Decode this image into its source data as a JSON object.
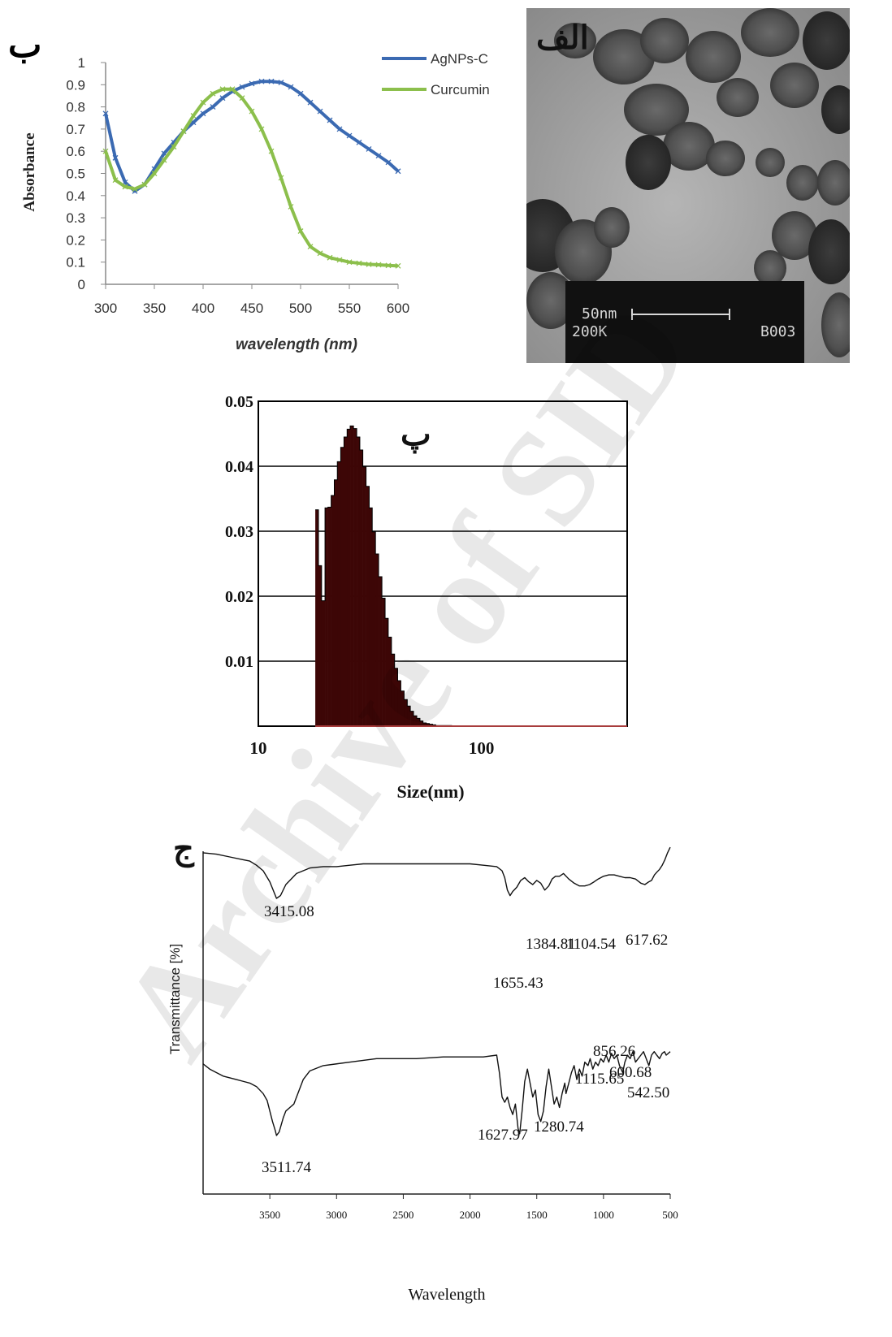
{
  "panels": {
    "uv_vis": {
      "letter": "ب"
    },
    "tem": {
      "letter": "الف",
      "scale_label": "50nm",
      "magnification": "200K",
      "code": "B003"
    },
    "dls": {
      "letter": "پ"
    },
    "ftir": {
      "letter": "ج"
    }
  },
  "watermark": "Archive of SID",
  "colors": {
    "agnps": "#3b6ab2",
    "curcumin": "#8cbf4c",
    "dls_fill": "#3d0606",
    "tem_bg": "#8a8a8a"
  },
  "chart_data": [
    {
      "id": "uv_vis",
      "type": "line",
      "title": "",
      "xlabel": "wavelength (nm)",
      "ylabel": "Absorbance",
      "xlim": [
        300,
        600
      ],
      "ylim": [
        0,
        1
      ],
      "xticks": [
        "300",
        "350",
        "400",
        "450",
        "500",
        "550",
        "600"
      ],
      "yticks": [
        "0",
        "0.1",
        "0.2",
        "0.3",
        "0.4",
        "0.5",
        "0.6",
        "0.7",
        "0.8",
        "0.9",
        "1"
      ],
      "grid": false,
      "legend": "top-right",
      "x": [
        300,
        310,
        320,
        330,
        340,
        350,
        360,
        370,
        380,
        390,
        400,
        410,
        420,
        430,
        440,
        450,
        460,
        470,
        480,
        490,
        500,
        510,
        520,
        530,
        540,
        550,
        560,
        570,
        580,
        590,
        600
      ],
      "series": [
        {
          "name": "AgNPs-C",
          "color": "#3b6ab2",
          "values": [
            0.77,
            0.57,
            0.46,
            0.42,
            0.45,
            0.52,
            0.59,
            0.64,
            0.69,
            0.73,
            0.77,
            0.8,
            0.84,
            0.87,
            0.89,
            0.905,
            0.915,
            0.915,
            0.91,
            0.89,
            0.86,
            0.82,
            0.78,
            0.74,
            0.7,
            0.67,
            0.64,
            0.61,
            0.58,
            0.55,
            0.51
          ]
        },
        {
          "name": "Curcumin",
          "color": "#8cbf4c",
          "values": [
            0.6,
            0.47,
            0.44,
            0.43,
            0.45,
            0.5,
            0.56,
            0.62,
            0.69,
            0.76,
            0.82,
            0.86,
            0.88,
            0.88,
            0.84,
            0.78,
            0.7,
            0.6,
            0.48,
            0.35,
            0.24,
            0.17,
            0.14,
            0.12,
            0.11,
            0.1,
            0.095,
            0.09,
            0.088,
            0.085,
            0.083
          ]
        }
      ]
    },
    {
      "id": "dls",
      "type": "bar",
      "title": "",
      "xlabel": "Size(nm)",
      "ylabel": "",
      "xscale": "log",
      "xlim": [
        10,
        450
      ],
      "ylim": [
        0,
        0.05
      ],
      "xticks": [
        "10",
        "100"
      ],
      "yticks": [
        "0.05",
        "0.04",
        "0.03",
        "0.02",
        "0.01"
      ],
      "grid": true,
      "x": [
        18.0,
        18.6,
        19.2,
        19.9,
        20.5,
        21.2,
        21.9,
        22.6,
        23.4,
        24.2,
        25.0,
        25.8,
        26.7,
        27.6,
        28.5,
        29.4,
        30.4,
        31.4,
        32.4,
        33.5,
        34.6,
        35.8,
        37.0,
        38.2,
        39.5,
        40.8,
        42.1,
        43.5,
        45.0,
        46.5,
        48.0,
        49.6,
        51.3,
        53.0,
        54.7,
        56.6,
        58.4,
        60.4,
        62.4,
        64.5,
        66.6,
        68.8,
        71.1,
        73.5,
        75.9,
        78.5,
        81.1,
        83.8
      ],
      "values": [
        0.0333,
        0.0247,
        0.0193,
        0.0336,
        0.0337,
        0.0355,
        0.0379,
        0.0407,
        0.0429,
        0.0445,
        0.0457,
        0.0462,
        0.0458,
        0.0445,
        0.0425,
        0.0399,
        0.0369,
        0.0336,
        0.0299,
        0.0265,
        0.023,
        0.0197,
        0.0166,
        0.0137,
        0.0111,
        0.0089,
        0.007,
        0.0054,
        0.0041,
        0.0031,
        0.0023,
        0.0016,
        0.0012,
        0.0008,
        0.0005,
        0.0004,
        0.0003,
        0.0002,
        0.0001,
        0.0001,
        0.0001,
        0.0001,
        0.0001,
        0.0,
        0.0,
        0.0,
        0.0,
        0.0
      ]
    },
    {
      "id": "ftir",
      "type": "line",
      "title": "",
      "xlabel": "Wavelength",
      "ylabel": "Transmittance [%]",
      "xlim": [
        4000,
        500
      ],
      "xticks": [
        "3500",
        "3000",
        "2500",
        "2000",
        "1500",
        "1000",
        "500"
      ],
      "grid": false,
      "series": [
        {
          "name": "",
          "x": [
            4000,
            3900,
            3800,
            3700,
            3650,
            3600,
            3550,
            3500,
            3450,
            3420,
            3380,
            3300,
            3200,
            3100,
            3000,
            2900,
            2800,
            2600,
            2400,
            2200,
            2000,
            1900,
            1800,
            1760,
            1740,
            1720,
            1700,
            1680,
            1650,
            1620,
            1590,
            1560,
            1530,
            1500,
            1470,
            1440,
            1410,
            1385,
            1360,
            1330,
            1300,
            1260,
            1220,
            1180,
            1140,
            1104,
            1070,
            1040,
            1000,
            960,
            920,
            880,
            840,
            800,
            760,
            720,
            690,
            660,
            640,
            618,
            600,
            580,
            560,
            540,
            520,
            500
          ],
          "values": [
            93,
            92,
            90,
            88,
            87,
            84,
            80,
            72,
            60,
            62,
            70,
            78,
            82,
            83,
            83,
            84,
            85,
            85,
            85,
            85,
            85,
            84,
            83,
            80,
            75,
            66,
            62,
            65,
            68,
            73,
            75,
            72,
            70,
            73,
            71,
            66,
            69,
            74,
            76,
            76,
            78,
            74,
            71,
            69,
            69,
            70,
            72,
            74,
            76,
            77,
            77,
            76,
            75,
            75,
            74,
            71,
            70,
            72,
            73,
            77,
            79,
            81,
            84,
            88,
            93,
            97
          ]
        },
        {
          "name": "",
          "x": [
            4000,
            3950,
            3900,
            3850,
            3800,
            3750,
            3700,
            3650,
            3600,
            3550,
            3520,
            3500,
            3480,
            3460,
            3450,
            3430,
            3400,
            3380,
            3350,
            3320,
            3300,
            3280,
            3250,
            3200,
            3100,
            3000,
            2900,
            2800,
            2700,
            2600,
            2400,
            2200,
            2000,
            1900,
            1800,
            1780,
            1760,
            1740,
            1720,
            1700,
            1680,
            1660,
            1640,
            1628,
            1610,
            1590,
            1570,
            1550,
            1530,
            1510,
            1490,
            1470,
            1450,
            1430,
            1410,
            1390,
            1370,
            1350,
            1330,
            1310,
            1290,
            1281,
            1260,
            1240,
            1220,
            1200,
            1180,
            1160,
            1140,
            1116,
            1100,
            1080,
            1060,
            1040,
            1020,
            1000,
            980,
            960,
            940,
            920,
            900,
            880,
            856,
            840,
            820,
            800,
            780,
            760,
            740,
            720,
            700,
            680,
            660,
            640,
            620,
            601,
            580,
            560,
            543,
            530,
            515,
            500
          ],
          "values": [
            55,
            52,
            50,
            48,
            47,
            46,
            45,
            44,
            42,
            38,
            34,
            28,
            22,
            17,
            14,
            16,
            24,
            28,
            30,
            32,
            36,
            40,
            46,
            51,
            54,
            55,
            56,
            57,
            58,
            58,
            58,
            59,
            59,
            59,
            60,
            50,
            36,
            33,
            36,
            30,
            26,
            32,
            18,
            15,
            28,
            45,
            52,
            44,
            36,
            40,
            26,
            22,
            28,
            42,
            52,
            42,
            32,
            36,
            30,
            38,
            44,
            38,
            44,
            50,
            54,
            46,
            52,
            48,
            56,
            54,
            58,
            52,
            56,
            54,
            58,
            56,
            60,
            56,
            61,
            58,
            60,
            54,
            50,
            56,
            60,
            58,
            62,
            56,
            58,
            60,
            62,
            58,
            54,
            60,
            62,
            60,
            58,
            61,
            62,
            60,
            61,
            62
          ]
        }
      ],
      "annotations": [
        "3415.08",
        "1655.43",
        "1384.81",
        "1104.54",
        "617.62",
        "3511.74",
        "1627.97",
        "1280.74",
        "1115.65",
        "856.26",
        "600.68",
        "542.50"
      ]
    }
  ]
}
